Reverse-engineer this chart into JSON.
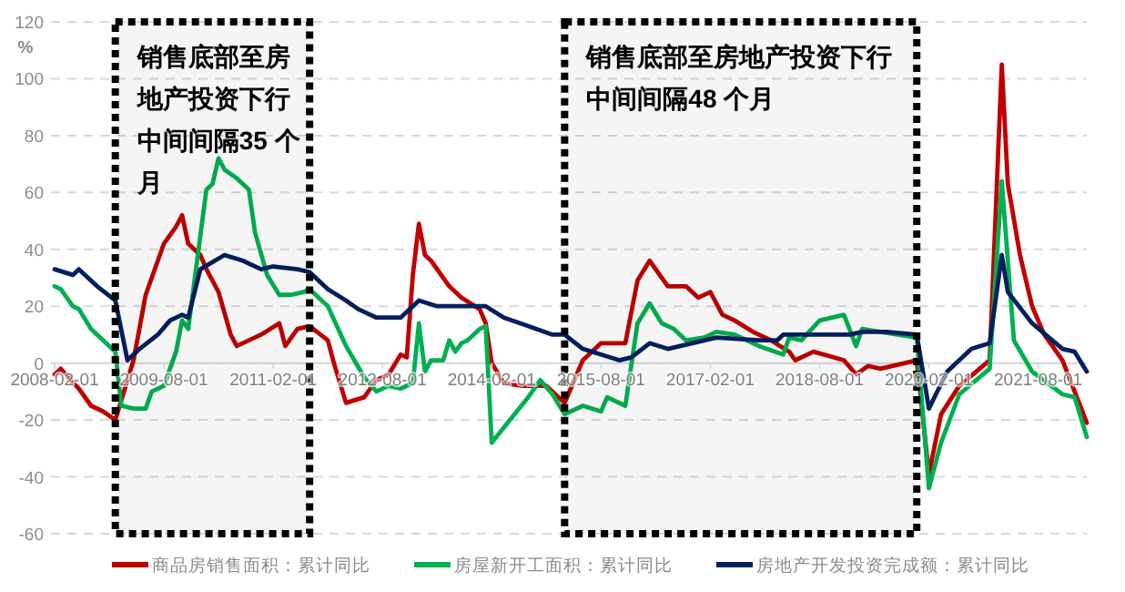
{
  "chart_data": {
    "type": "line",
    "ylabel": "%",
    "xlim": [
      "2008-02",
      "2022-04"
    ],
    "ylim": [
      -60,
      120
    ],
    "yticks": [
      -60,
      -40,
      -20,
      0,
      20,
      40,
      60,
      80,
      100,
      120
    ],
    "xticks": [
      "2008-02-01",
      "2009-08-01",
      "2011-02-01",
      "2012-08-01",
      "2014-02-01",
      "2015-08-01",
      "2017-02-01",
      "2018-08-01",
      "2020-02-01",
      "2021-08-01"
    ],
    "grid": "y",
    "legend": "bottom",
    "bands": [
      {
        "axis": "x",
        "from": "2008-12",
        "to": "2011-08",
        "label": "销售底部至房地产投资下行中间间隔35 个月",
        "color": "#000000"
      },
      {
        "axis": "x",
        "from": "2015-02",
        "to": "2019-12",
        "label": "销售底部至房地产投资下行中间间隔48 个月",
        "color": "#000000"
      }
    ],
    "series": [
      {
        "name": "商品房销售面积：累计同比",
        "color": "#c00000",
        "x": [
          "2008-02",
          "2008-03",
          "2008-06",
          "2008-08",
          "2008-10",
          "2008-12",
          "2009-03",
          "2009-05",
          "2009-08",
          "2009-10",
          "2009-11",
          "2009-12",
          "2010-02",
          "2010-03",
          "2010-05",
          "2010-07",
          "2010-08",
          "2010-12",
          "2011-03",
          "2011-04",
          "2011-06",
          "2011-08",
          "2011-11",
          "2011-12",
          "2012-02",
          "2012-05",
          "2012-07",
          "2012-09",
          "2012-11",
          "2012-12",
          "2013-01",
          "2013-02",
          "2013-03",
          "2013-04",
          "2013-07",
          "2013-09",
          "2013-12",
          "2014-01",
          "2014-02",
          "2014-04",
          "2014-07",
          "2014-11",
          "2015-02",
          "2015-05",
          "2015-08",
          "2015-12",
          "2016-02",
          "2016-04",
          "2016-07",
          "2016-10",
          "2016-12",
          "2017-02",
          "2017-04",
          "2017-06",
          "2017-09",
          "2017-12",
          "2018-03",
          "2018-04",
          "2018-07",
          "2018-12",
          "2019-02",
          "2019-04",
          "2019-06",
          "2019-12",
          "2020-02",
          "2020-04",
          "2020-07",
          "2020-12",
          "2021-02",
          "2021-03",
          "2021-05",
          "2021-07",
          "2021-09",
          "2021-12",
          "2022-04"
        ],
        "values": [
          -4,
          -2,
          -9,
          -15,
          -17,
          -20,
          1,
          24,
          42,
          48,
          52,
          42,
          38,
          33,
          25,
          10,
          6,
          10,
          14,
          6,
          12,
          13,
          8,
          0,
          -14,
          -12,
          -6,
          -4,
          3,
          2,
          31,
          49,
          38,
          36,
          27,
          23,
          19,
          14,
          0,
          -7,
          -8,
          -8,
          -14,
          1,
          7,
          7,
          29,
          36,
          27,
          27,
          23,
          25,
          17,
          15,
          11,
          8,
          4,
          1,
          4,
          1,
          -4,
          -1,
          -2,
          1,
          -39,
          -18,
          -8,
          1,
          105,
          63,
          38,
          20,
          10,
          1,
          -21
        ]
      },
      {
        "name": "房屋新开工面积：累计同比",
        "color": "#00b050",
        "x": [
          "2008-02",
          "2008-03",
          "2008-05",
          "2008-06",
          "2008-08",
          "2008-11",
          "2008-12",
          "2009-01",
          "2009-03",
          "2009-05",
          "2009-06",
          "2009-08",
          "2009-10",
          "2009-11",
          "2009-12",
          "2010-03",
          "2010-04",
          "2010-05",
          "2010-06",
          "2010-08",
          "2010-10",
          "2010-11",
          "2011-01",
          "2011-03",
          "2011-05",
          "2011-07",
          "2011-08",
          "2011-11",
          "2012-02",
          "2012-05",
          "2012-07",
          "2012-09",
          "2012-11",
          "2013-01",
          "2013-02",
          "2013-03",
          "2013-04",
          "2013-06",
          "2013-07",
          "2013-08",
          "2013-09",
          "2013-10",
          "2013-12",
          "2014-01",
          "2014-02",
          "2014-05",
          "2014-08",
          "2014-10",
          "2014-12",
          "2015-02",
          "2015-05",
          "2015-08",
          "2015-09",
          "2015-12",
          "2016-02",
          "2016-04",
          "2016-06",
          "2016-08",
          "2016-10",
          "2017-01",
          "2017-03",
          "2017-06",
          "2017-10",
          "2018-02",
          "2018-03",
          "2018-05",
          "2018-08",
          "2018-12",
          "2019-02",
          "2019-03",
          "2019-06",
          "2019-12",
          "2020-02",
          "2020-04",
          "2020-07",
          "2020-12",
          "2021-02",
          "2021-04",
          "2021-07",
          "2021-12",
          "2022-02",
          "2022-04"
        ],
        "values": [
          27,
          26,
          20,
          19,
          12,
          6,
          4,
          -15,
          -16,
          -16,
          -10,
          -8,
          4,
          15,
          12,
          61,
          63,
          72,
          68,
          65,
          61,
          46,
          31,
          24,
          24,
          25,
          26,
          20,
          6,
          -5,
          -10,
          -8,
          -9,
          -7,
          14,
          -3,
          1,
          1,
          8,
          4,
          7,
          8,
          12,
          13,
          -28,
          -20,
          -12,
          -6,
          -11,
          -18,
          -15,
          -17,
          -12,
          -15,
          14,
          21,
          14,
          12,
          8,
          9,
          11,
          10,
          6,
          3,
          9,
          8,
          15,
          17,
          6,
          12,
          11,
          9,
          -44,
          -28,
          -11,
          -2,
          64,
          8,
          -3,
          -11,
          -12,
          -26
        ]
      },
      {
        "name": "房地产开发投资完成额：累计同比",
        "color": "#002060",
        "x": [
          "2008-02",
          "2008-05",
          "2008-06",
          "2008-09",
          "2008-12",
          "2009-02",
          "2009-04",
          "2009-07",
          "2009-09",
          "2009-11",
          "2009-12",
          "2010-02",
          "2010-06",
          "2010-09",
          "2010-12",
          "2011-02",
          "2011-06",
          "2011-08",
          "2011-11",
          "2012-02",
          "2012-04",
          "2012-07",
          "2012-11",
          "2013-02",
          "2013-05",
          "2013-09",
          "2014-01",
          "2014-04",
          "2014-08",
          "2014-12",
          "2015-02",
          "2015-05",
          "2015-11",
          "2016-01",
          "2016-04",
          "2016-07",
          "2016-11",
          "2017-03",
          "2017-10",
          "2018-01",
          "2018-02",
          "2019-01",
          "2019-03",
          "2019-07",
          "2019-12",
          "2020-02",
          "2020-05",
          "2020-09",
          "2020-12",
          "2021-02",
          "2021-03",
          "2021-07",
          "2021-12",
          "2022-02",
          "2022-04"
        ],
        "values": [
          33,
          31,
          33,
          27,
          22,
          1,
          5,
          10,
          15,
          17,
          16,
          33,
          38,
          36,
          33,
          34,
          33,
          32,
          26,
          22,
          19,
          16,
          16,
          22,
          20,
          20,
          20,
          16,
          13,
          10,
          10,
          5,
          1,
          2,
          7,
          5,
          7,
          9,
          8,
          8,
          10,
          10,
          11,
          11,
          10,
          -16,
          -3,
          5,
          7,
          38,
          25,
          14,
          5,
          4,
          -3
        ]
      }
    ]
  }
}
